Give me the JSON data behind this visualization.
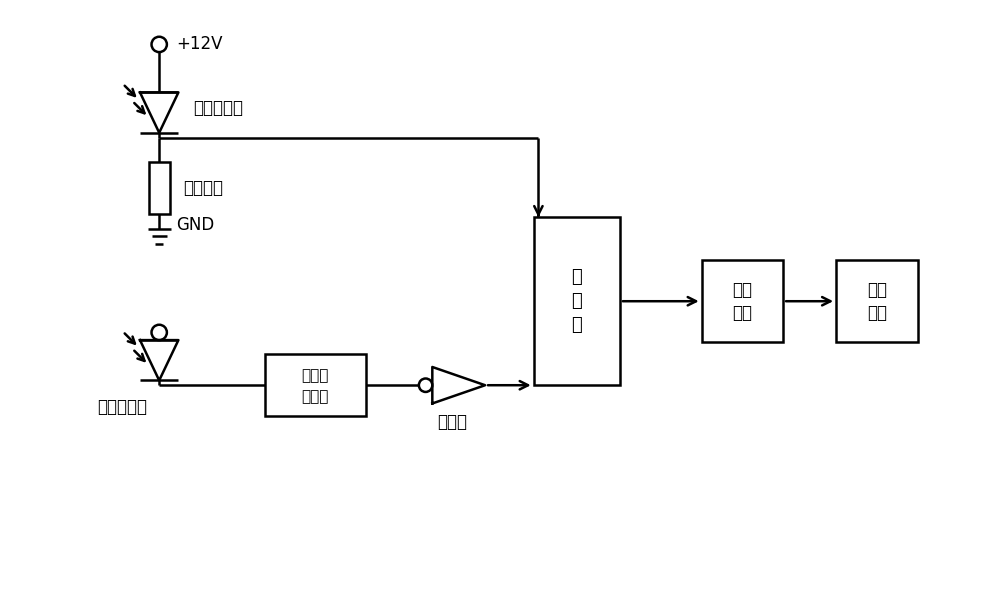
{
  "bg_color": "#ffffff",
  "line_color": "#000000",
  "line_width": 1.8,
  "fig_width": 10.0,
  "fig_height": 5.89,
  "labels": {
    "v12": "+12V",
    "gnd": "GND",
    "photodetector": "光电探测器",
    "bias_resistor": "偏置电阻",
    "pair_detector": "对管探测器",
    "monostable_line1": "单稳态",
    "monostable_line2": "触发器",
    "inverter": "反相器",
    "adder_line1": "加",
    "adder_line2": "法",
    "adder_line3": "器",
    "data_acq_line1": "数据",
    "data_acq_line2": "采集",
    "process_line1": "处理",
    "process_line2": "单元"
  }
}
